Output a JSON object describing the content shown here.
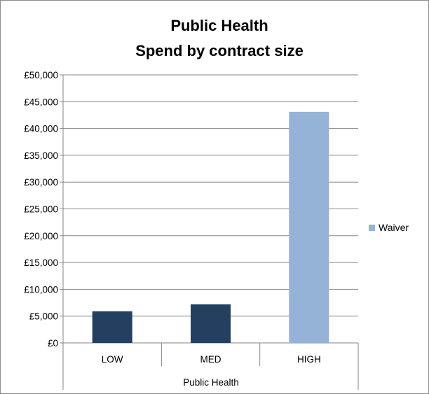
{
  "chart_data": {
    "type": "bar",
    "title": [
      "Public Health",
      "Spend by contract size"
    ],
    "categories": [
      "LOW",
      "MED",
      "HIGH"
    ],
    "group_label": "Public Health",
    "values": [
      5900,
      7200,
      43100
    ],
    "bar_colors": [
      "#243f60",
      "#243f60",
      "#95b3d7"
    ],
    "yticks": [
      "£0",
      "£5,000",
      "£10,000",
      "£15,000",
      "£20,000",
      "£25,000",
      "£30,000",
      "£35,000",
      "£40,000",
      "£45,000",
      "£50,000"
    ],
    "ylim": [
      0,
      50000
    ],
    "ystep": 5000,
    "grid": true,
    "legend": {
      "position": "right",
      "entries": [
        {
          "label": "Waiver",
          "color": "#95b3d7"
        }
      ]
    },
    "colors": {
      "grid": "#868686",
      "axis": "#868686"
    }
  }
}
